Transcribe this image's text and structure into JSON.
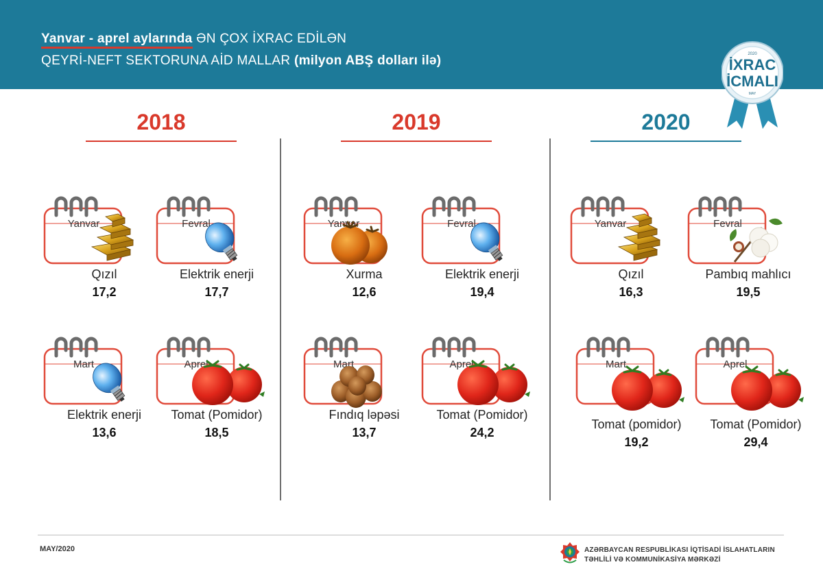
{
  "header": {
    "line1_bold": "Yanvar - aprel  aylarında",
    "line1_rest": "ƏN ÇOX İXRAC EDİLƏN",
    "line2_text": "QEYRİ-NEFT SEKTORUNA AİD MALLAR",
    "line2_bold": "(milyon ABŞ dolları ilə)"
  },
  "badge": {
    "year": "2020",
    "line1": "İXRAC",
    "line2": "İCMALI",
    "month": "MAY"
  },
  "colors": {
    "header_bg": "#1d7a99",
    "red": "#d9392b",
    "blue": "#1d7a99"
  },
  "years": [
    {
      "label": "2018",
      "items": [
        {
          "month": "Yanvar",
          "product": "Qızıl",
          "value": "17,2",
          "icon": "gold-bars"
        },
        {
          "month": "Fevral",
          "product": "Elektrik enerji",
          "value": "17,7",
          "icon": "light-bulb"
        },
        {
          "month": "Mart",
          "product": "Elektrik enerji",
          "value": "13,6",
          "icon": "light-bulb"
        },
        {
          "month": "Aprel",
          "product": "Tomat (Pomidor)",
          "value": "18,5",
          "icon": "tomatoes"
        }
      ]
    },
    {
      "label": "2019",
      "items": [
        {
          "month": "Yanvar",
          "product": "Xurma",
          "value": "12,6",
          "icon": "persimmons"
        },
        {
          "month": "Fevral",
          "product": "Elektrik enerji",
          "value": "19,4",
          "icon": "light-bulb"
        },
        {
          "month": "Mart",
          "product": "Fındıq ləpəsi",
          "value": "13,7",
          "icon": "hazelnuts"
        },
        {
          "month": "Aprel",
          "product": "Tomat (Pomidor)",
          "value": "24,2",
          "icon": "tomatoes"
        }
      ]
    },
    {
      "label": "2020",
      "items": [
        {
          "month": "Yanvar",
          "product": "Qızıl",
          "value": "16,3",
          "icon": "gold-bars"
        },
        {
          "month": "Fevral",
          "product": "Pambıq mahlıcı",
          "value": "19,5",
          "icon": "cotton"
        },
        {
          "month": "Mart",
          "product": "Tomat (pomidor)",
          "value": "19,2",
          "icon": "tomatoes"
        },
        {
          "month": "Aprel",
          "product": "Tomat (Pomidor)",
          "value": "29,4",
          "icon": "tomatoes"
        }
      ]
    }
  ],
  "footer": {
    "date": "MAY/2020",
    "org_line1": "AZƏRBAYCAN RESPUBLİKASI İQTİSADİ İSLAHATLARIN",
    "org_line2": "TƏHLİLİ VƏ KOMMUNİKASİYA MƏRKƏZİ"
  }
}
